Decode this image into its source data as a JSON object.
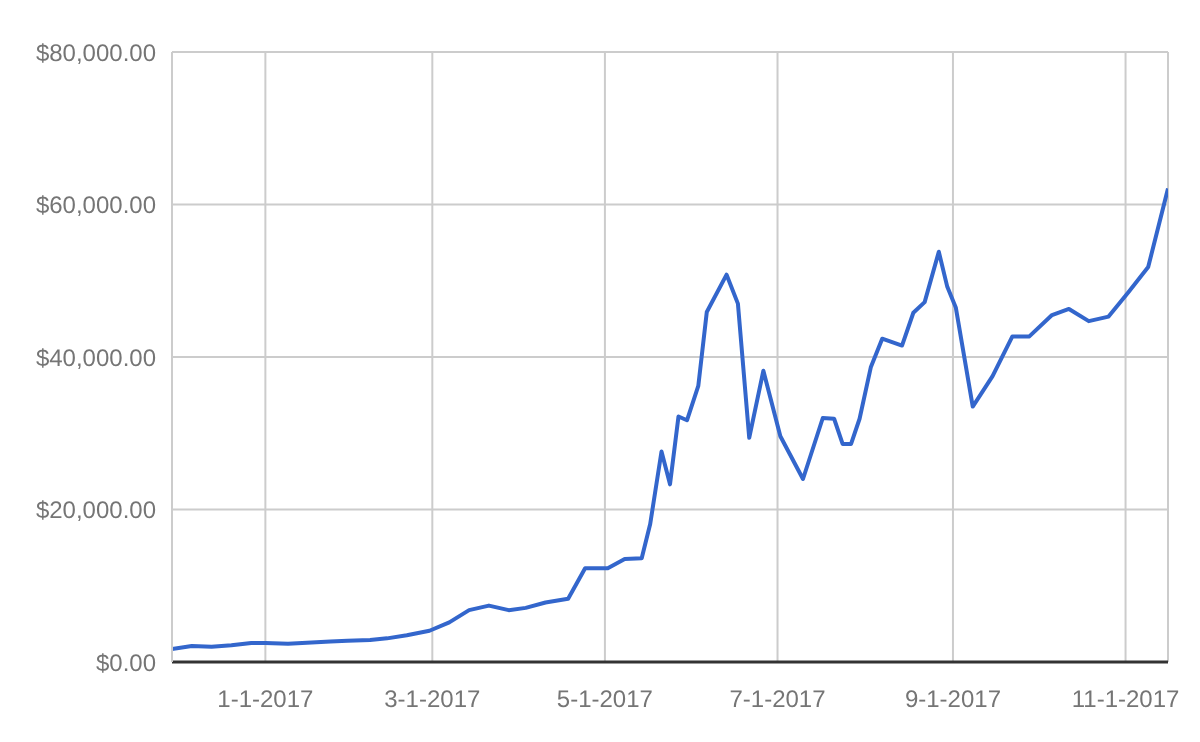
{
  "chart_data": {
    "type": "line",
    "x": [
      "2016-11-29",
      "2016-12-06",
      "2016-12-13",
      "2016-12-20",
      "2016-12-27",
      "2017-01-01",
      "2017-01-09",
      "2017-01-19",
      "2017-01-24",
      "2017-01-30",
      "2017-02-07",
      "2017-02-13",
      "2017-02-20",
      "2017-02-28",
      "2017-03-07",
      "2017-03-14",
      "2017-03-21",
      "2017-03-28",
      "2017-04-03",
      "2017-04-10",
      "2017-04-18",
      "2017-04-24",
      "2017-05-02",
      "2017-05-08",
      "2017-05-14",
      "2017-05-17",
      "2017-05-21",
      "2017-05-24",
      "2017-05-27",
      "2017-05-30",
      "2017-06-03",
      "2017-06-06",
      "2017-06-13",
      "2017-06-17",
      "2017-06-21",
      "2017-06-26",
      "2017-07-02",
      "2017-07-10",
      "2017-07-17",
      "2017-07-21",
      "2017-07-24",
      "2017-07-27",
      "2017-07-30",
      "2017-08-03",
      "2017-08-07",
      "2017-08-14",
      "2017-08-18",
      "2017-08-22",
      "2017-08-27",
      "2017-08-30",
      "2017-09-02",
      "2017-09-08",
      "2017-09-15",
      "2017-09-22",
      "2017-09-28",
      "2017-10-06",
      "2017-10-12",
      "2017-10-19",
      "2017-10-26",
      "2017-11-02",
      "2017-11-09",
      "2017-11-16"
    ],
    "series": [
      {
        "color": "#3366cc",
        "values": [
          1700,
          2100,
          2000,
          2200,
          2500,
          2500,
          2400,
          2600,
          2700,
          2800,
          2900,
          3100,
          3500,
          4100,
          5200,
          6800,
          7400,
          6800,
          7100,
          7800,
          8300,
          12300,
          12300,
          13500,
          13600,
          18100,
          27600,
          23300,
          32200,
          31700,
          36200,
          45900,
          50800,
          47000,
          29400,
          38200,
          29600,
          24000,
          32000,
          31900,
          28600,
          28600,
          31900,
          38700,
          42400,
          41500,
          45800,
          47200,
          53800,
          49200,
          46500,
          33500,
          37500,
          42700,
          42700,
          45500,
          46300,
          44700,
          45300,
          48500,
          51800,
          62100
        ]
      }
    ],
    "xlim": [
      "2016-11-29",
      "2017-11-16"
    ],
    "xticks": [
      {
        "value": "2017-01-01",
        "label": "1-1-2017"
      },
      {
        "value": "2017-03-01",
        "label": "3-1-2017"
      },
      {
        "value": "2017-05-01",
        "label": "5-1-2017"
      },
      {
        "value": "2017-07-01",
        "label": "7-1-2017"
      },
      {
        "value": "2017-09-01",
        "label": "9-1-2017"
      },
      {
        "value": "2017-11-01",
        "label": "11-1-2017"
      }
    ],
    "ylim": [
      0,
      80000
    ],
    "yticks": [
      {
        "value": 0,
        "label": "$0.00"
      },
      {
        "value": 20000,
        "label": "$20,000.00"
      },
      {
        "value": 40000,
        "label": "$40,000.00"
      },
      {
        "value": 60000,
        "label": "$60,000.00"
      },
      {
        "value": 80000,
        "label": "$80,000.00"
      }
    ],
    "grid": true,
    "legend": false,
    "marker": "none",
    "line_style": "solid"
  }
}
